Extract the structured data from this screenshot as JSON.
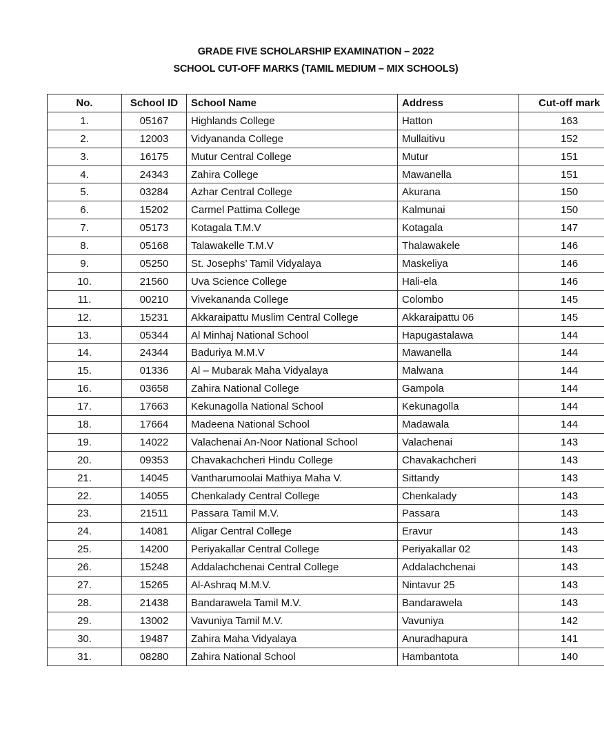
{
  "document": {
    "title_line1": "GRADE FIVE SCHOLARSHIP EXAMINATION – 2022",
    "title_line2": "SCHOOL CUT-OFF MARKS (TAMIL MEDIUM – MIX SCHOOLS)"
  },
  "table": {
    "headers": [
      "No.",
      "School ID",
      "School Name",
      "Address",
      "Cut-off mark"
    ],
    "rows": [
      [
        "1.",
        "05167",
        "Highlands College",
        "Hatton",
        "163"
      ],
      [
        "2.",
        "12003",
        "Vidyananda College",
        "Mullaitivu",
        "152"
      ],
      [
        "3.",
        "16175",
        "Mutur Central College",
        "Mutur",
        "151"
      ],
      [
        "4.",
        "24343",
        "Zahira College",
        "Mawanella",
        "151"
      ],
      [
        "5.",
        "03284",
        "Azhar Central College",
        "Akurana",
        "150"
      ],
      [
        "6.",
        "15202",
        "Carmel Pattima College",
        "Kalmunai",
        "150"
      ],
      [
        "7.",
        "05173",
        "Kotagala T.M.V",
        "Kotagala",
        "147"
      ],
      [
        "8.",
        "05168",
        "Talawakelle T.M.V",
        "Thalawakele",
        "146"
      ],
      [
        "9.",
        "05250",
        "St. Josephs’ Tamil Vidyalaya",
        "Maskeliya",
        "146"
      ],
      [
        "10.",
        "21560",
        "Uva Science College",
        "Hali-ela",
        "146"
      ],
      [
        "11.",
        "00210",
        "Vivekananda College",
        "Colombo",
        "145"
      ],
      [
        "12.",
        "15231",
        "Akkaraipattu Muslim Central College",
        "Akkaraipattu 06",
        "145"
      ],
      [
        "13.",
        "05344",
        "Al Minhaj National School",
        "Hapugastalawa",
        "144"
      ],
      [
        "14.",
        "24344",
        "Baduriya M.M.V",
        "Mawanella",
        "144"
      ],
      [
        "15.",
        "01336",
        "Al – Mubarak Maha Vidyalaya",
        "Malwana",
        "144"
      ],
      [
        "16.",
        "03658",
        "Zahira National College",
        "Gampola",
        "144"
      ],
      [
        "17.",
        "17663",
        "Kekunagolla National School",
        "Kekunagolla",
        "144"
      ],
      [
        "18.",
        "17664",
        "Madeena National School",
        "Madawala",
        "144"
      ],
      [
        "19.",
        "14022",
        "Valachenai An-Noor National School",
        "Valachenai",
        "143"
      ],
      [
        "20.",
        "09353",
        "Chavakachcheri Hindu College",
        "Chavakachcheri",
        "143"
      ],
      [
        "21.",
        "14045",
        "Vantharumoolai Mathiya Maha V.",
        "Sittandy",
        "143"
      ],
      [
        "22.",
        "14055",
        "Chenkalady Central College",
        "Chenkalady",
        "143"
      ],
      [
        "23.",
        "21511",
        "Passara Tamil M.V.",
        "Passara",
        "143"
      ],
      [
        "24.",
        "14081",
        "Aligar Central College",
        "Eravur",
        "143"
      ],
      [
        "25.",
        "14200",
        "Periyakallar Central College",
        "Periyakallar 02",
        "143"
      ],
      [
        "26.",
        "15248",
        "Addalachchenai Central College",
        "Addalachchenai",
        "143"
      ],
      [
        "27.",
        "15265",
        "Al-Ashraq M.M.V.",
        "Nintavur 25",
        "143"
      ],
      [
        "28.",
        "21438",
        "Bandarawela Tamil M.V.",
        "Bandarawela",
        "143"
      ],
      [
        "29.",
        "13002",
        "Vavuniya Tamil M.V.",
        "Vavuniya",
        "142"
      ],
      [
        "30.",
        "19487",
        "Zahira Maha Vidyalaya",
        "Anuradhapura",
        "141"
      ],
      [
        "31.",
        "08280",
        "Zahira National School",
        "Hambantota",
        "140"
      ]
    ]
  }
}
